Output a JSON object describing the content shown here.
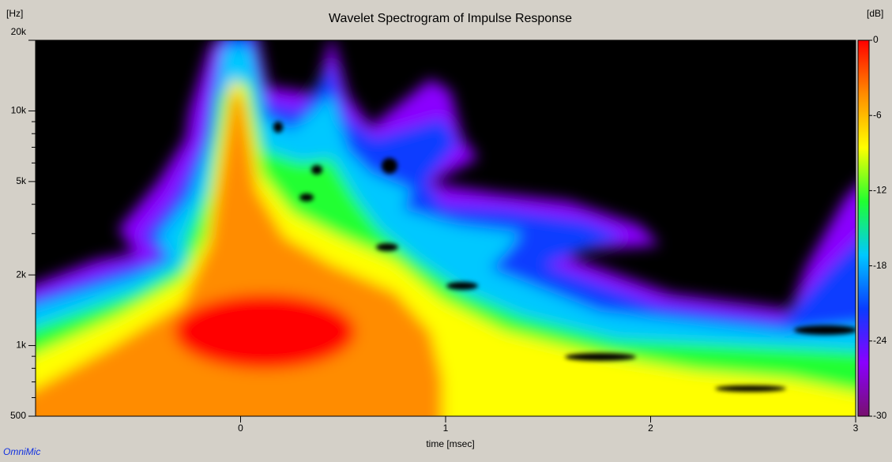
{
  "chart_data": {
    "type": "heatmap",
    "title": "Wavelet Spectrogram of Impulse Response",
    "x_label": "time [msec]",
    "y_unit": "[Hz]",
    "colorbar_unit": "[dB]",
    "watermark": "OmniMic",
    "xlim": [
      -1,
      3
    ],
    "xticks": [
      0,
      1,
      2,
      3
    ],
    "ylim": [
      500,
      20000
    ],
    "y_scale": "log",
    "yticks": [
      500,
      {
        "value": 1000,
        "label": "1k"
      },
      {
        "value": 2000,
        "label": "2k"
      },
      {
        "value": 5000,
        "label": "5k"
      },
      {
        "value": 10000,
        "label": "10k"
      },
      {
        "value": 20000,
        "label": "20k"
      }
    ],
    "y_minor_ticks": [
      600,
      700,
      800,
      900,
      3000,
      4000,
      6000,
      7000,
      8000,
      9000
    ],
    "zlim": [
      -30,
      0
    ],
    "zticks": [
      0,
      -6,
      -12,
      -18,
      -24,
      -30
    ],
    "colormap": [
      "#78106e",
      "#8a00ff",
      "#0a3cff",
      "#00c8ff",
      "#20ff30",
      "#ffff00",
      "#ff8c00",
      "#ff0000"
    ]
  }
}
